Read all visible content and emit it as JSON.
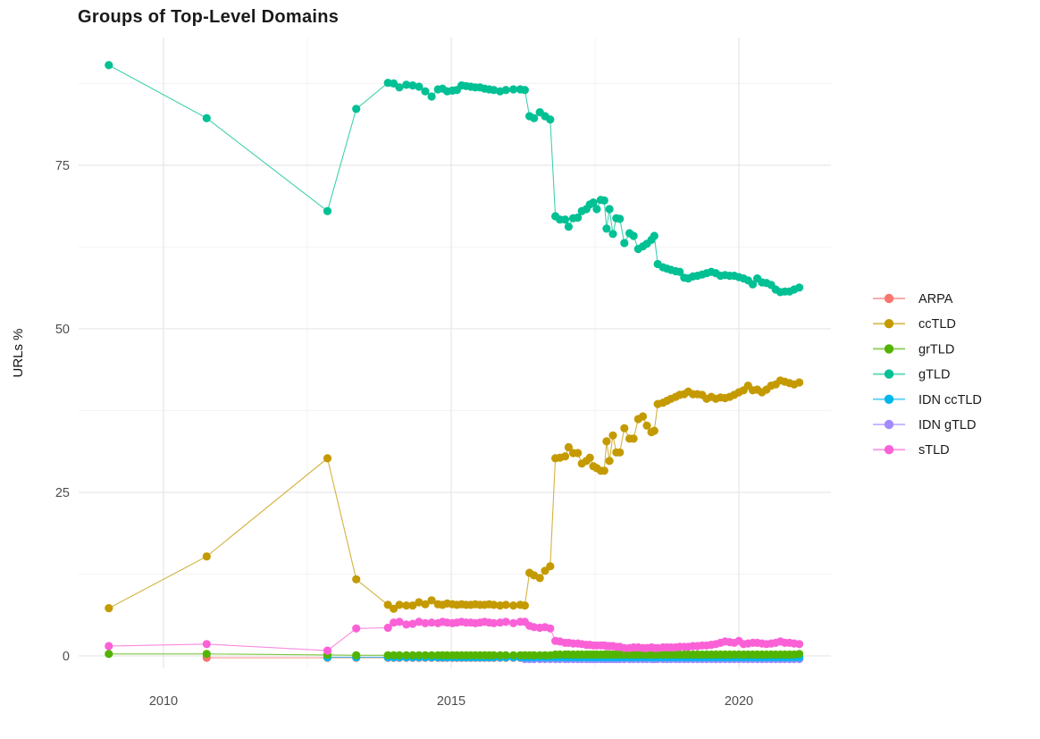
{
  "title": "Groups of Top-Level Domains",
  "axes": {
    "y_label": "URLs %",
    "y_ticks": [
      "0",
      "25",
      "50",
      "75"
    ],
    "x_ticks": [
      "2010",
      "2015",
      "2020"
    ]
  },
  "legend": {
    "position": "right",
    "items": [
      {
        "label": "ARPA",
        "color": "#F8766D"
      },
      {
        "label": "ccTLD",
        "color": "#C49A00"
      },
      {
        "label": "grTLD",
        "color": "#53B400"
      },
      {
        "label": "gTLD",
        "color": "#00C094"
      },
      {
        "label": "IDN ccTLD",
        "color": "#00B6EB"
      },
      {
        "label": "IDN gTLD",
        "color": "#A58AFF"
      },
      {
        "label": "sTLD",
        "color": "#FB61D7"
      }
    ]
  },
  "style": {
    "background": "#ffffff",
    "grid_major": "#e7e7e7",
    "grid_minor": "#f3f3f3",
    "tick_label_color": "#4d4d4d"
  },
  "chart_data": {
    "type": "scatter",
    "title": "Groups of Top-Level Domains",
    "xlabel": "",
    "ylabel": "URLs %",
    "xlim": [
      2008.5,
      2021.6
    ],
    "ylim": [
      -2,
      94.5
    ],
    "x_major_gridlines": [
      2010,
      2015,
      2020
    ],
    "x_minor_gridlines": [
      2012.5,
      2017.5
    ],
    "y_major_gridlines": [
      0,
      25,
      50,
      75
    ],
    "y_minor_gridlines": [
      12.5,
      37.5,
      62.5,
      87.5
    ],
    "legend_position": "right",
    "x": [
      2009.05,
      2010.75,
      2012.85,
      2013.35,
      2013.9,
      2014.0,
      2014.1,
      2014.22,
      2014.33,
      2014.44,
      2014.55,
      2014.66,
      2014.77,
      2014.85,
      2014.93,
      2015.02,
      2015.1,
      2015.18,
      2015.26,
      2015.34,
      2015.42,
      2015.5,
      2015.58,
      2015.66,
      2015.74,
      2015.85,
      2015.95,
      2016.08,
      2016.2,
      2016.28,
      2016.36,
      2016.44,
      2016.54,
      2016.63,
      2016.72,
      2016.81,
      2016.89,
      2016.98,
      2017.04,
      2017.12,
      2017.2,
      2017.27,
      2017.35,
      2017.41,
      2017.47,
      2017.53,
      2017.6,
      2017.66,
      2017.7,
      2017.75,
      2017.81,
      2017.87,
      2017.93,
      2018.01,
      2018.1,
      2018.17,
      2018.25,
      2018.33,
      2018.4,
      2018.48,
      2018.53,
      2018.59,
      2018.68,
      2018.75,
      2018.82,
      2018.9,
      2018.97,
      2019.05,
      2019.12,
      2019.2,
      2019.28,
      2019.36,
      2019.44,
      2019.52,
      2019.6,
      2019.68,
      2019.76,
      2019.84,
      2019.92,
      2020.0,
      2020.08,
      2020.16,
      2020.24,
      2020.32,
      2020.4,
      2020.48,
      2020.56,
      2020.64,
      2020.72,
      2020.8,
      2020.88,
      2020.96,
      2021.05
    ],
    "series": [
      {
        "name": "ARPA",
        "color": "#F8766D",
        "values": [
          null,
          0.05,
          0.05,
          0.05,
          0.05,
          0.05,
          0.05,
          0.05,
          0.05,
          0.05,
          0.05,
          0.05,
          0.05,
          0.05,
          0.05,
          0.05,
          0.05,
          0.05,
          0.05,
          0.05,
          0.05,
          0.05,
          0.05,
          0.05,
          0.05,
          0.05,
          0.05,
          0.05,
          0.05,
          0.05,
          0.05,
          0.05,
          0.05,
          0.05,
          0.05,
          0.05,
          0.05,
          0.05,
          0.05,
          0.05,
          0.05,
          0.05,
          0.05,
          0.05,
          0.05,
          0.05,
          0.05,
          0.05,
          0.05,
          0.05,
          0.05,
          0.05,
          0.05,
          0.05,
          0.05,
          0.05,
          0.05,
          0.05,
          0.05,
          0.05,
          0.05,
          0.05,
          0.05,
          0.05,
          0.05,
          0.05,
          0.05,
          0.05,
          0.05,
          0.05,
          0.05,
          0.05,
          0.05,
          0.05,
          0.05,
          0.05,
          0.05,
          0.05,
          0.05,
          0.05,
          0.05,
          0.05,
          0.05,
          0.05,
          0.05,
          0.05,
          0.05,
          0.05,
          0.05,
          0.05,
          0.05,
          0.05,
          0.05
        ]
      },
      {
        "name": "ccTLD",
        "color": "#C49A00",
        "values": [
          7.3,
          15.2,
          30.2,
          11.7,
          7.8,
          7.2,
          7.8,
          7.7,
          7.7,
          8.2,
          7.9,
          8.5,
          7.9,
          7.8,
          8.0,
          7.9,
          7.8,
          7.9,
          7.8,
          7.8,
          7.9,
          7.8,
          7.8,
          7.9,
          7.8,
          7.7,
          7.8,
          7.7,
          7.8,
          7.7,
          12.7,
          12.3,
          11.9,
          13.0,
          13.7,
          30.2,
          30.3,
          30.5,
          31.9,
          31.0,
          31.0,
          29.4,
          29.8,
          30.3,
          29.0,
          28.7,
          28.3,
          28.3,
          32.8,
          29.8,
          33.7,
          31.1,
          31.1,
          34.8,
          33.2,
          33.2,
          36.2,
          36.6,
          35.2,
          34.2,
          34.4,
          38.5,
          38.7,
          39.0,
          39.3,
          39.6,
          39.9,
          40.0,
          40.4,
          40.0,
          40.0,
          39.9,
          39.3,
          39.6,
          39.3,
          39.5,
          39.4,
          39.6,
          39.9,
          40.3,
          40.6,
          41.3,
          40.6,
          40.7,
          40.3,
          40.7,
          41.3,
          41.5,
          42.1,
          41.9,
          41.7,
          41.5,
          41.8
        ]
      },
      {
        "name": "grTLD",
        "color": "#53B400",
        "values": [
          0.3,
          0.3,
          0.15,
          0.1,
          0.1,
          0.1,
          0.1,
          0.1,
          0.1,
          0.1,
          0.1,
          0.1,
          0.1,
          0.1,
          0.1,
          0.1,
          0.1,
          0.1,
          0.1,
          0.1,
          0.1,
          0.1,
          0.1,
          0.1,
          0.1,
          0.1,
          0.1,
          0.1,
          0.1,
          0.1,
          0.1,
          0.1,
          0.1,
          0.1,
          0.1,
          0.2,
          0.2,
          0.2,
          0.2,
          0.2,
          0.2,
          0.2,
          0.2,
          0.2,
          0.2,
          0.2,
          0.2,
          0.2,
          0.2,
          0.2,
          0.2,
          0.2,
          0.2,
          0.2,
          0.2,
          0.2,
          0.2,
          0.2,
          0.2,
          0.2,
          0.2,
          0.2,
          0.2,
          0.2,
          0.2,
          0.2,
          0.2,
          0.2,
          0.2,
          0.2,
          0.2,
          0.2,
          0.2,
          0.2,
          0.2,
          0.2,
          0.2,
          0.2,
          0.2,
          0.2,
          0.2,
          0.2,
          0.2,
          0.2,
          0.2,
          0.2,
          0.2,
          0.2,
          0.2,
          0.2,
          0.2,
          0.2,
          0.3
        ]
      },
      {
        "name": "gTLD",
        "color": "#00C094",
        "values": [
          90.3,
          82.2,
          68.0,
          83.6,
          87.6,
          87.5,
          86.9,
          87.3,
          87.2,
          87.0,
          86.3,
          85.5,
          86.6,
          86.7,
          86.3,
          86.4,
          86.5,
          87.2,
          87.1,
          87.0,
          86.9,
          86.9,
          86.7,
          86.6,
          86.5,
          86.3,
          86.5,
          86.6,
          86.6,
          86.5,
          82.5,
          82.2,
          83.1,
          82.5,
          82.0,
          67.2,
          66.7,
          66.7,
          65.6,
          66.9,
          67.0,
          68.0,
          68.3,
          69.0,
          69.3,
          68.3,
          69.7,
          69.6,
          65.3,
          68.3,
          64.5,
          66.9,
          66.8,
          63.1,
          64.6,
          64.2,
          62.2,
          62.6,
          63.0,
          63.6,
          64.2,
          59.9,
          59.4,
          59.2,
          59.0,
          58.8,
          58.7,
          57.8,
          57.7,
          58.0,
          58.1,
          58.3,
          58.5,
          58.7,
          58.5,
          58.1,
          58.2,
          58.1,
          58.1,
          57.9,
          57.7,
          57.4,
          56.8,
          57.7,
          57.1,
          57.0,
          56.7,
          56.0,
          55.6,
          55.7,
          55.7,
          56.0,
          56.3
        ]
      },
      {
        "name": "IDN ccTLD",
        "color": "#00B6EB",
        "values": [
          null,
          null,
          0.05,
          0.05,
          0.05,
          0.05,
          0.05,
          0.05,
          0.05,
          0.05,
          0.05,
          0.05,
          0.05,
          0.05,
          0.05,
          0.05,
          0.05,
          0.05,
          0.05,
          0.05,
          0.05,
          0.05,
          0.05,
          0.05,
          0.05,
          0.05,
          0.05,
          0.05,
          0.05,
          0.05,
          0.05,
          0.05,
          0.05,
          0.05,
          0.05,
          0.05,
          0.05,
          0.05,
          0.05,
          0.05,
          0.05,
          0.05,
          0.05,
          0.05,
          0.05,
          0.05,
          0.05,
          0.05,
          0.05,
          0.05,
          0.05,
          0.05,
          0.05,
          0.05,
          0.05,
          0.05,
          0.05,
          0.05,
          0.05,
          0.05,
          0.05,
          0.05,
          0.05,
          0.05,
          0.05,
          0.05,
          0.05,
          0.05,
          0.05,
          0.05,
          0.05,
          0.05,
          0.05,
          0.05,
          0.05,
          0.05,
          0.05,
          0.05,
          0.05,
          0.05,
          0.05,
          0.05,
          0.05,
          0.05,
          0.05,
          0.05,
          0.05,
          0.05,
          0.05,
          0.05,
          0.05,
          0.05,
          0.05
        ]
      },
      {
        "name": "IDN gTLD",
        "color": "#A58AFF",
        "values": [
          null,
          null,
          null,
          null,
          null,
          null,
          null,
          null,
          null,
          null,
          null,
          null,
          null,
          null,
          null,
          null,
          null,
          null,
          null,
          null,
          null,
          null,
          null,
          null,
          null,
          null,
          null,
          null,
          null,
          0,
          0,
          0,
          0,
          0,
          0,
          0,
          0,
          0,
          0,
          0,
          0,
          0,
          0,
          0,
          0,
          0,
          0,
          0,
          0,
          0,
          0,
          0,
          0,
          0,
          0,
          0,
          0,
          0,
          0,
          0,
          0,
          0,
          0,
          0,
          0,
          0,
          0,
          0,
          0,
          0,
          0,
          0,
          0,
          0,
          0,
          0,
          0,
          0,
          0,
          0,
          0,
          0,
          0,
          0,
          0,
          0,
          0,
          0,
          0,
          0,
          0,
          0,
          0
        ]
      },
      {
        "name": "sTLD",
        "color": "#FB61D7",
        "values": [
          1.5,
          1.8,
          0.8,
          4.2,
          4.3,
          5.1,
          5.2,
          4.8,
          4.9,
          5.2,
          5.0,
          5.1,
          5.0,
          5.2,
          5.1,
          5.0,
          5.1,
          5.2,
          5.1,
          5.1,
          5.0,
          5.1,
          5.2,
          5.1,
          5.0,
          5.1,
          5.2,
          5.0,
          5.2,
          5.2,
          4.6,
          4.4,
          4.3,
          4.4,
          4.2,
          2.3,
          2.2,
          2.0,
          2.0,
          1.9,
          1.9,
          1.8,
          1.7,
          1.7,
          1.6,
          1.6,
          1.6,
          1.6,
          1.5,
          1.5,
          1.5,
          1.4,
          1.4,
          1.2,
          1.2,
          1.3,
          1.3,
          1.2,
          1.2,
          1.3,
          1.2,
          1.2,
          1.3,
          1.3,
          1.3,
          1.3,
          1.4,
          1.4,
          1.4,
          1.5,
          1.5,
          1.6,
          1.6,
          1.7,
          1.8,
          2.0,
          2.2,
          2.1,
          2.0,
          2.3,
          1.8,
          1.9,
          2.0,
          2.0,
          1.9,
          1.8,
          1.9,
          2.0,
          2.2,
          2.0,
          2.0,
          1.9,
          1.8
        ]
      }
    ]
  }
}
